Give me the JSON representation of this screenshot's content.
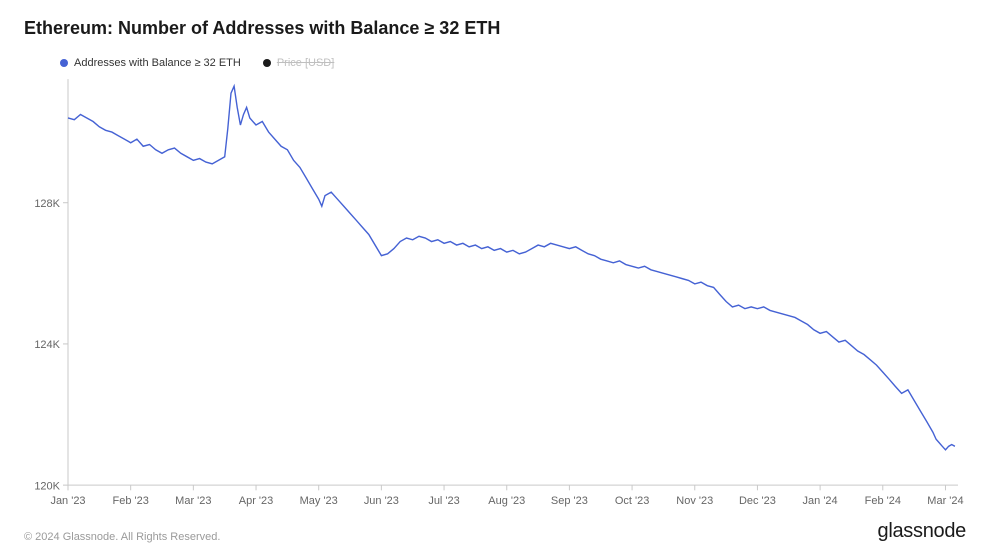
{
  "title": "Ethereum: Number of Addresses with Balance ≥ 32 ETH",
  "legend": {
    "series1": {
      "label": "Addresses with Balance ≥ 32 ETH",
      "color": "#4562d4"
    },
    "series2": {
      "label": "Price [USD]",
      "color": "#1a1a1a",
      "muted": true
    }
  },
  "chart": {
    "type": "line",
    "background_color": "#ffffff",
    "axis_color": "#c9c9c9",
    "tick_label_color": "#666666",
    "tick_label_fontsize": 11,
    "line_width": 1.4,
    "y_axis": {
      "min": 120000,
      "max": 131500,
      "ticks": [
        {
          "value": 120000,
          "label": "120K"
        },
        {
          "value": 124000,
          "label": "124K"
        },
        {
          "value": 128000,
          "label": "128K"
        }
      ]
    },
    "x_axis": {
      "min": 0,
      "max": 14.2,
      "ticks": [
        {
          "value": 0,
          "label": "Jan '23"
        },
        {
          "value": 1,
          "label": "Feb '23"
        },
        {
          "value": 2,
          "label": "Mar '23"
        },
        {
          "value": 3,
          "label": "Apr '23"
        },
        {
          "value": 4,
          "label": "May '23"
        },
        {
          "value": 5,
          "label": "Jun '23"
        },
        {
          "value": 6,
          "label": "Jul '23"
        },
        {
          "value": 7,
          "label": "Aug '23"
        },
        {
          "value": 8,
          "label": "Sep '23"
        },
        {
          "value": 9,
          "label": "Oct '23"
        },
        {
          "value": 10,
          "label": "Nov '23"
        },
        {
          "value": 11,
          "label": "Dec '23"
        },
        {
          "value": 12,
          "label": "Jan '24"
        },
        {
          "value": 13,
          "label": "Feb '24"
        },
        {
          "value": 14,
          "label": "Mar '24"
        }
      ]
    },
    "series": [
      {
        "name": "addresses_ge_32_eth",
        "color": "#4562d4",
        "points": [
          {
            "x": 0.0,
            "y": 130400
          },
          {
            "x": 0.1,
            "y": 130350
          },
          {
            "x": 0.2,
            "y": 130500
          },
          {
            "x": 0.3,
            "y": 130400
          },
          {
            "x": 0.4,
            "y": 130300
          },
          {
            "x": 0.5,
            "y": 130150
          },
          {
            "x": 0.6,
            "y": 130050
          },
          {
            "x": 0.7,
            "y": 130000
          },
          {
            "x": 0.8,
            "y": 129900
          },
          {
            "x": 0.9,
            "y": 129800
          },
          {
            "x": 1.0,
            "y": 129700
          },
          {
            "x": 1.1,
            "y": 129800
          },
          {
            "x": 1.2,
            "y": 129600
          },
          {
            "x": 1.3,
            "y": 129650
          },
          {
            "x": 1.4,
            "y": 129500
          },
          {
            "x": 1.5,
            "y": 129400
          },
          {
            "x": 1.6,
            "y": 129500
          },
          {
            "x": 1.7,
            "y": 129550
          },
          {
            "x": 1.8,
            "y": 129400
          },
          {
            "x": 1.9,
            "y": 129300
          },
          {
            "x": 2.0,
            "y": 129200
          },
          {
            "x": 2.1,
            "y": 129250
          },
          {
            "x": 2.2,
            "y": 129150
          },
          {
            "x": 2.3,
            "y": 129100
          },
          {
            "x": 2.4,
            "y": 129200
          },
          {
            "x": 2.5,
            "y": 129300
          },
          {
            "x": 2.55,
            "y": 130100
          },
          {
            "x": 2.6,
            "y": 131100
          },
          {
            "x": 2.65,
            "y": 131300
          },
          {
            "x": 2.7,
            "y": 130700
          },
          {
            "x": 2.75,
            "y": 130200
          },
          {
            "x": 2.8,
            "y": 130500
          },
          {
            "x": 2.85,
            "y": 130700
          },
          {
            "x": 2.9,
            "y": 130400
          },
          {
            "x": 3.0,
            "y": 130200
          },
          {
            "x": 3.1,
            "y": 130300
          },
          {
            "x": 3.2,
            "y": 130000
          },
          {
            "x": 3.3,
            "y": 129800
          },
          {
            "x": 3.4,
            "y": 129600
          },
          {
            "x": 3.5,
            "y": 129500
          },
          {
            "x": 3.6,
            "y": 129200
          },
          {
            "x": 3.7,
            "y": 129000
          },
          {
            "x": 3.8,
            "y": 128700
          },
          {
            "x": 3.9,
            "y": 128400
          },
          {
            "x": 4.0,
            "y": 128100
          },
          {
            "x": 4.05,
            "y": 127900
          },
          {
            "x": 4.1,
            "y": 128200
          },
          {
            "x": 4.2,
            "y": 128300
          },
          {
            "x": 4.3,
            "y": 128100
          },
          {
            "x": 4.4,
            "y": 127900
          },
          {
            "x": 4.5,
            "y": 127700
          },
          {
            "x": 4.6,
            "y": 127500
          },
          {
            "x": 4.7,
            "y": 127300
          },
          {
            "x": 4.8,
            "y": 127100
          },
          {
            "x": 4.9,
            "y": 126800
          },
          {
            "x": 5.0,
            "y": 126500
          },
          {
            "x": 5.1,
            "y": 126550
          },
          {
            "x": 5.2,
            "y": 126700
          },
          {
            "x": 5.3,
            "y": 126900
          },
          {
            "x": 5.4,
            "y": 127000
          },
          {
            "x": 5.5,
            "y": 126950
          },
          {
            "x": 5.6,
            "y": 127050
          },
          {
            "x": 5.7,
            "y": 127000
          },
          {
            "x": 5.8,
            "y": 126900
          },
          {
            "x": 5.9,
            "y": 126950
          },
          {
            "x": 6.0,
            "y": 126850
          },
          {
            "x": 6.1,
            "y": 126900
          },
          {
            "x": 6.2,
            "y": 126800
          },
          {
            "x": 6.3,
            "y": 126850
          },
          {
            "x": 6.4,
            "y": 126750
          },
          {
            "x": 6.5,
            "y": 126800
          },
          {
            "x": 6.6,
            "y": 126700
          },
          {
            "x": 6.7,
            "y": 126750
          },
          {
            "x": 6.8,
            "y": 126650
          },
          {
            "x": 6.9,
            "y": 126700
          },
          {
            "x": 7.0,
            "y": 126600
          },
          {
            "x": 7.1,
            "y": 126650
          },
          {
            "x": 7.2,
            "y": 126550
          },
          {
            "x": 7.3,
            "y": 126600
          },
          {
            "x": 7.4,
            "y": 126700
          },
          {
            "x": 7.5,
            "y": 126800
          },
          {
            "x": 7.6,
            "y": 126750
          },
          {
            "x": 7.7,
            "y": 126850
          },
          {
            "x": 7.8,
            "y": 126800
          },
          {
            "x": 7.9,
            "y": 126750
          },
          {
            "x": 8.0,
            "y": 126700
          },
          {
            "x": 8.1,
            "y": 126750
          },
          {
            "x": 8.2,
            "y": 126650
          },
          {
            "x": 8.3,
            "y": 126550
          },
          {
            "x": 8.4,
            "y": 126500
          },
          {
            "x": 8.5,
            "y": 126400
          },
          {
            "x": 8.6,
            "y": 126350
          },
          {
            "x": 8.7,
            "y": 126300
          },
          {
            "x": 8.8,
            "y": 126350
          },
          {
            "x": 8.9,
            "y": 126250
          },
          {
            "x": 9.0,
            "y": 126200
          },
          {
            "x": 9.1,
            "y": 126150
          },
          {
            "x": 9.2,
            "y": 126200
          },
          {
            "x": 9.3,
            "y": 126100
          },
          {
            "x": 9.4,
            "y": 126050
          },
          {
            "x": 9.5,
            "y": 126000
          },
          {
            "x": 9.6,
            "y": 125950
          },
          {
            "x": 9.7,
            "y": 125900
          },
          {
            "x": 9.8,
            "y": 125850
          },
          {
            "x": 9.9,
            "y": 125800
          },
          {
            "x": 10.0,
            "y": 125700
          },
          {
            "x": 10.1,
            "y": 125750
          },
          {
            "x": 10.2,
            "y": 125650
          },
          {
            "x": 10.3,
            "y": 125600
          },
          {
            "x": 10.4,
            "y": 125400
          },
          {
            "x": 10.5,
            "y": 125200
          },
          {
            "x": 10.6,
            "y": 125050
          },
          {
            "x": 10.7,
            "y": 125100
          },
          {
            "x": 10.8,
            "y": 125000
          },
          {
            "x": 10.9,
            "y": 125050
          },
          {
            "x": 11.0,
            "y": 125000
          },
          {
            "x": 11.1,
            "y": 125050
          },
          {
            "x": 11.2,
            "y": 124950
          },
          {
            "x": 11.3,
            "y": 124900
          },
          {
            "x": 11.4,
            "y": 124850
          },
          {
            "x": 11.5,
            "y": 124800
          },
          {
            "x": 11.6,
            "y": 124750
          },
          {
            "x": 11.7,
            "y": 124650
          },
          {
            "x": 11.8,
            "y": 124550
          },
          {
            "x": 11.9,
            "y": 124400
          },
          {
            "x": 12.0,
            "y": 124300
          },
          {
            "x": 12.1,
            "y": 124350
          },
          {
            "x": 12.2,
            "y": 124200
          },
          {
            "x": 12.3,
            "y": 124050
          },
          {
            "x": 12.4,
            "y": 124100
          },
          {
            "x": 12.5,
            "y": 123950
          },
          {
            "x": 12.6,
            "y": 123800
          },
          {
            "x": 12.7,
            "y": 123700
          },
          {
            "x": 12.8,
            "y": 123550
          },
          {
            "x": 12.9,
            "y": 123400
          },
          {
            "x": 13.0,
            "y": 123200
          },
          {
            "x": 13.1,
            "y": 123000
          },
          {
            "x": 13.2,
            "y": 122800
          },
          {
            "x": 13.3,
            "y": 122600
          },
          {
            "x": 13.4,
            "y": 122700
          },
          {
            "x": 13.5,
            "y": 122400
          },
          {
            "x": 13.6,
            "y": 122100
          },
          {
            "x": 13.7,
            "y": 121800
          },
          {
            "x": 13.8,
            "y": 121500
          },
          {
            "x": 13.85,
            "y": 121300
          },
          {
            "x": 13.9,
            "y": 121200
          },
          {
            "x": 13.95,
            "y": 121100
          },
          {
            "x": 14.0,
            "y": 121000
          },
          {
            "x": 14.05,
            "y": 121100
          },
          {
            "x": 14.1,
            "y": 121150
          },
          {
            "x": 14.15,
            "y": 121100
          }
        ]
      }
    ]
  },
  "footer": {
    "copyright": "© 2024 Glassnode. All Rights Reserved.",
    "brand": "glassnode"
  }
}
